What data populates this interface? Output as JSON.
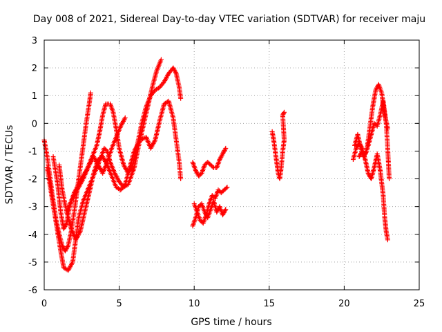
{
  "chart_data": {
    "type": "scatter",
    "title": "Day 008 of 2021, Sidereal Day-to-day VTEC variation (SDTVAR) for receiver maju",
    "xlabel": "GPS time / hours",
    "ylabel": "SDTVAR / TECUs",
    "xlim": [
      0,
      25
    ],
    "ylim": [
      -6,
      3
    ],
    "xticks": [
      "0",
      "5",
      "10",
      "15",
      "20",
      "25"
    ],
    "yticks": [
      "-6",
      "-5",
      "-4",
      "-3",
      "-2",
      "-1",
      "0",
      "1",
      "2",
      "3"
    ],
    "grid": true,
    "marker": "+",
    "color": "#ff0000",
    "series": [
      {
        "values": [
          [
            0.0,
            -0.6
          ],
          [
            0.2,
            -1.2
          ],
          [
            0.4,
            -2.0
          ],
          [
            0.6,
            -2.8
          ],
          [
            0.8,
            -3.5
          ],
          [
            1.0,
            -4.0
          ],
          [
            1.2,
            -4.4
          ],
          [
            1.4,
            -4.6
          ],
          [
            1.6,
            -4.4
          ],
          [
            1.8,
            -3.9
          ],
          [
            2.0,
            -3.2
          ],
          [
            2.2,
            -2.4
          ],
          [
            2.4,
            -1.6
          ],
          [
            2.6,
            -0.8
          ],
          [
            2.8,
            0.0
          ],
          [
            3.0,
            0.7
          ],
          [
            3.1,
            1.1
          ]
        ]
      },
      {
        "values": [
          [
            0.2,
            -1.6
          ],
          [
            0.5,
            -2.6
          ],
          [
            0.8,
            -3.6
          ],
          [
            1.1,
            -4.6
          ],
          [
            1.3,
            -5.2
          ],
          [
            1.6,
            -5.3
          ],
          [
            1.9,
            -5.0
          ],
          [
            2.1,
            -4.2
          ],
          [
            2.3,
            -3.4
          ],
          [
            2.6,
            -2.8
          ],
          [
            2.9,
            -2.4
          ],
          [
            3.2,
            -2.0
          ],
          [
            3.5,
            -1.6
          ],
          [
            3.8,
            -1.2
          ],
          [
            4.0,
            -0.9
          ],
          [
            4.2,
            -1.0
          ],
          [
            4.4,
            -1.4
          ],
          [
            4.7,
            -1.8
          ],
          [
            5.0,
            -2.1
          ],
          [
            5.3,
            -2.3
          ],
          [
            5.6,
            -2.2
          ],
          [
            6.0,
            -1.6
          ],
          [
            6.3,
            -0.8
          ],
          [
            6.6,
            -0.1
          ],
          [
            6.9,
            0.6
          ],
          [
            7.2,
            1.3
          ],
          [
            7.5,
            1.9
          ],
          [
            7.8,
            2.3
          ]
        ]
      },
      {
        "values": [
          [
            0.6,
            -1.2
          ],
          [
            0.9,
            -2.2
          ],
          [
            1.1,
            -3.2
          ],
          [
            1.3,
            -3.8
          ],
          [
            1.5,
            -3.6
          ],
          [
            1.7,
            -3.0
          ],
          [
            2.0,
            -2.5
          ],
          [
            2.3,
            -2.2
          ],
          [
            2.6,
            -1.9
          ],
          [
            2.9,
            -1.6
          ],
          [
            3.2,
            -1.2
          ],
          [
            3.5,
            -0.8
          ],
          [
            3.7,
            -0.3
          ],
          [
            3.9,
            0.3
          ],
          [
            4.1,
            0.7
          ],
          [
            4.4,
            0.7
          ],
          [
            4.6,
            0.4
          ],
          [
            4.8,
            -0.2
          ],
          [
            5.0,
            -0.9
          ],
          [
            5.3,
            -1.5
          ],
          [
            5.6,
            -1.8
          ],
          [
            5.9,
            -1.5
          ],
          [
            6.2,
            -0.8
          ],
          [
            6.5,
            0.0
          ],
          [
            6.8,
            0.6
          ],
          [
            7.1,
            1.0
          ],
          [
            7.4,
            1.2
          ],
          [
            7.7,
            1.3
          ],
          [
            8.0,
            1.5
          ],
          [
            8.3,
            1.8
          ],
          [
            8.6,
            2.0
          ],
          [
            8.8,
            1.8
          ],
          [
            9.0,
            1.3
          ],
          [
            9.1,
            0.9
          ]
        ]
      },
      {
        "values": [
          [
            1.0,
            -1.5
          ],
          [
            1.2,
            -2.4
          ],
          [
            1.5,
            -3.2
          ],
          [
            1.8,
            -3.8
          ],
          [
            2.1,
            -4.2
          ],
          [
            2.4,
            -3.9
          ],
          [
            2.7,
            -3.2
          ],
          [
            3.0,
            -2.5
          ],
          [
            3.3,
            -1.8
          ],
          [
            3.6,
            -1.3
          ],
          [
            3.9,
            -1.2
          ],
          [
            4.2,
            -1.5
          ],
          [
            4.5,
            -1.9
          ],
          [
            4.8,
            -2.3
          ],
          [
            5.1,
            -2.4
          ],
          [
            5.4,
            -2.2
          ],
          [
            5.7,
            -1.6
          ],
          [
            6.0,
            -1.0
          ],
          [
            6.4,
            -0.6
          ],
          [
            6.8,
            -0.5
          ],
          [
            7.1,
            -0.9
          ],
          [
            7.4,
            -0.6
          ],
          [
            7.7,
            0.1
          ],
          [
            8.0,
            0.7
          ],
          [
            8.3,
            0.8
          ],
          [
            8.6,
            0.2
          ],
          [
            8.8,
            -0.6
          ],
          [
            9.0,
            -1.4
          ],
          [
            9.1,
            -2.0
          ]
        ]
      },
      {
        "values": [
          [
            1.5,
            -3.2
          ],
          [
            1.8,
            -2.8
          ],
          [
            2.2,
            -2.4
          ],
          [
            2.6,
            -2.0
          ],
          [
            3.0,
            -1.5
          ],
          [
            3.3,
            -1.2
          ],
          [
            3.6,
            -1.5
          ],
          [
            3.9,
            -1.8
          ],
          [
            4.2,
            -1.4
          ],
          [
            4.5,
            -0.9
          ],
          [
            4.8,
            -0.5
          ],
          [
            5.1,
            -0.1
          ],
          [
            5.4,
            0.2
          ]
        ]
      },
      {
        "values": [
          [
            9.9,
            -3.7
          ],
          [
            10.1,
            -3.4
          ],
          [
            10.3,
            -3.0
          ],
          [
            10.5,
            -2.9
          ],
          [
            10.7,
            -3.2
          ],
          [
            10.9,
            -3.4
          ],
          [
            11.1,
            -3.1
          ],
          [
            11.3,
            -2.8
          ],
          [
            11.5,
            -3.2
          ],
          [
            11.7,
            -3.0
          ],
          [
            11.9,
            -3.3
          ],
          [
            12.1,
            -3.1
          ]
        ]
      },
      {
        "values": [
          [
            10.0,
            -2.9
          ],
          [
            10.2,
            -3.2
          ],
          [
            10.4,
            -3.5
          ],
          [
            10.6,
            -3.6
          ],
          [
            10.8,
            -3.3
          ],
          [
            11.0,
            -2.9
          ],
          [
            11.2,
            -2.6
          ],
          [
            11.4,
            -2.7
          ],
          [
            11.6,
            -2.4
          ],
          [
            11.8,
            -2.5
          ],
          [
            12.0,
            -2.4
          ],
          [
            12.2,
            -2.3
          ]
        ]
      },
      {
        "values": [
          [
            9.9,
            -1.4
          ],
          [
            10.1,
            -1.7
          ],
          [
            10.3,
            -1.9
          ],
          [
            10.5,
            -1.8
          ],
          [
            10.7,
            -1.5
          ],
          [
            10.9,
            -1.4
          ],
          [
            11.1,
            -1.5
          ],
          [
            11.3,
            -1.6
          ],
          [
            11.5,
            -1.6
          ],
          [
            11.7,
            -1.3
          ],
          [
            11.9,
            -1.1
          ],
          [
            12.1,
            -0.9
          ]
        ]
      },
      {
        "values": [
          [
            15.2,
            -0.3
          ],
          [
            15.3,
            -0.6
          ],
          [
            15.4,
            -1.0
          ],
          [
            15.5,
            -1.4
          ],
          [
            15.6,
            -1.8
          ],
          [
            15.7,
            -2.0
          ],
          [
            15.8,
            -1.6
          ],
          [
            15.9,
            -1.0
          ],
          [
            16.0,
            -0.6
          ],
          [
            15.9,
            0.3
          ],
          [
            16.0,
            0.4
          ]
        ]
      },
      {
        "values": [
          [
            20.6,
            -1.3
          ],
          [
            20.8,
            -0.9
          ],
          [
            21.0,
            -0.7
          ],
          [
            21.2,
            -0.9
          ],
          [
            21.4,
            -1.3
          ],
          [
            21.6,
            -1.8
          ],
          [
            21.8,
            -2.0
          ],
          [
            22.0,
            -1.6
          ],
          [
            22.2,
            -1.1
          ],
          [
            22.4,
            -1.7
          ],
          [
            22.6,
            -2.6
          ],
          [
            22.7,
            -3.4
          ],
          [
            22.8,
            -3.9
          ],
          [
            22.9,
            -4.2
          ]
        ]
      },
      {
        "values": [
          [
            20.7,
            -0.8
          ],
          [
            20.9,
            -0.4
          ],
          [
            21.1,
            -0.9
          ],
          [
            21.3,
            -1.2
          ],
          [
            21.5,
            -1.0
          ],
          [
            21.7,
            -0.2
          ],
          [
            21.9,
            0.6
          ],
          [
            22.1,
            1.2
          ],
          [
            22.3,
            1.4
          ],
          [
            22.5,
            1.1
          ],
          [
            22.7,
            0.3
          ],
          [
            22.9,
            -0.2
          ]
        ]
      },
      {
        "values": [
          [
            21.0,
            -1.2
          ],
          [
            21.2,
            -1.0
          ],
          [
            21.4,
            -1.1
          ],
          [
            21.6,
            -0.8
          ],
          [
            21.8,
            -0.4
          ],
          [
            22.0,
            0.0
          ],
          [
            22.2,
            -0.1
          ],
          [
            22.4,
            0.3
          ],
          [
            22.6,
            0.8
          ],
          [
            22.8,
            0.0
          ],
          [
            22.9,
            -0.9
          ],
          [
            23.0,
            -2.0
          ]
        ]
      }
    ]
  }
}
